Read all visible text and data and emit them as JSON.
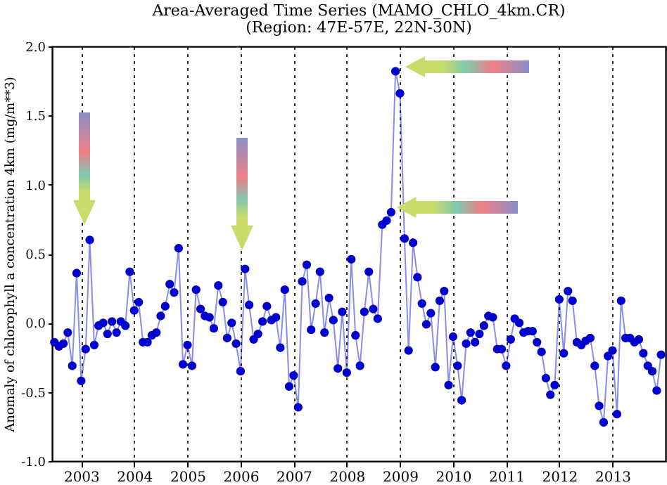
{
  "chart_data": {
    "type": "line",
    "title": "Area-Averaged Time Series (MAMO_CHLO_4km.CR)",
    "subtitle": "(Region: 47E-57E, 22N-30N)",
    "ylabel": "Anomaly of chlorophyll a concentration 4km  (mg/m**3)",
    "x": [
      "2002-07",
      "2002-08",
      "2002-09",
      "2002-10",
      "2002-11",
      "2002-12",
      "2003-01",
      "2003-02",
      "2003-03",
      "2003-04",
      "2003-05",
      "2003-06",
      "2003-07",
      "2003-08",
      "2003-09",
      "2003-10",
      "2003-11",
      "2003-12",
      "2004-01",
      "2004-02",
      "2004-03",
      "2004-04",
      "2004-05",
      "2004-06",
      "2004-07",
      "2004-08",
      "2004-09",
      "2004-10",
      "2004-11",
      "2004-12",
      "2005-01",
      "2005-02",
      "2005-03",
      "2005-04",
      "2005-05",
      "2005-06",
      "2005-07",
      "2005-08",
      "2005-09",
      "2005-10",
      "2005-11",
      "2005-12",
      "2006-01",
      "2006-02",
      "2006-03",
      "2006-04",
      "2006-05",
      "2006-06",
      "2006-07",
      "2006-08",
      "2006-09",
      "2006-10",
      "2006-11",
      "2006-12",
      "2007-01",
      "2007-02",
      "2007-03",
      "2007-04",
      "2007-05",
      "2007-06",
      "2007-07",
      "2007-08",
      "2007-09",
      "2007-10",
      "2007-11",
      "2007-12",
      "2008-01",
      "2008-02",
      "2008-03",
      "2008-04",
      "2008-05",
      "2008-06",
      "2008-07",
      "2008-08",
      "2008-09",
      "2008-10",
      "2008-11",
      "2008-12",
      "2009-01",
      "2009-02",
      "2009-03",
      "2009-04",
      "2009-05",
      "2009-06",
      "2009-07",
      "2009-08",
      "2009-09",
      "2009-10",
      "2009-11",
      "2009-12",
      "2010-01",
      "2010-02",
      "2010-03",
      "2010-04",
      "2010-05",
      "2010-06",
      "2010-07",
      "2010-08",
      "2010-09",
      "2010-10",
      "2010-11",
      "2010-12",
      "2011-01",
      "2011-02",
      "2011-03",
      "2011-04",
      "2011-05",
      "2011-06",
      "2011-07",
      "2011-08",
      "2011-09",
      "2011-10",
      "2011-11",
      "2011-12",
      "2012-01",
      "2012-02",
      "2012-03",
      "2012-04",
      "2012-05",
      "2012-06",
      "2012-07",
      "2012-08",
      "2012-09",
      "2012-10",
      "2012-11",
      "2012-12",
      "2013-01",
      "2013-02",
      "2013-03",
      "2013-04",
      "2013-05",
      "2013-06",
      "2013-07",
      "2013-08",
      "2013-09",
      "2013-10",
      "2013-11",
      "2013-12"
    ],
    "series": [
      {
        "color": "#0000cc",
        "values": [
          -0.14,
          -0.17,
          -0.15,
          -0.07,
          -0.31,
          0.36,
          -0.42,
          -0.19,
          0.6,
          -0.16,
          -0.02,
          0.0,
          -0.08,
          0.01,
          -0.07,
          0.01,
          -0.02,
          0.37,
          0.09,
          0.15,
          -0.14,
          -0.14,
          -0.09,
          -0.07,
          0.05,
          0.12,
          0.28,
          0.22,
          0.54,
          -0.3,
          -0.16,
          -0.31,
          0.24,
          0.1,
          0.05,
          0.04,
          -0.04,
          0.27,
          0.15,
          -0.11,
          0.0,
          -0.15,
          -0.35,
          0.39,
          0.13,
          -0.12,
          -0.08,
          0.01,
          0.12,
          0.02,
          0.04,
          -0.18,
          0.24,
          -0.46,
          -0.38,
          -0.61,
          0.3,
          0.42,
          -0.05,
          0.14,
          0.37,
          -0.07,
          0.18,
          0.02,
          -0.33,
          0.08,
          -0.36,
          0.46,
          -0.09,
          -0.31,
          0.08,
          0.37,
          0.1,
          0.03,
          0.71,
          0.74,
          0.8,
          1.82,
          1.66,
          0.61,
          -0.2,
          0.58,
          0.33,
          0.14,
          -0.01,
          0.07,
          -0.32,
          0.16,
          0.23,
          -0.45,
          -0.1,
          -0.31,
          -0.56,
          -0.15,
          -0.07,
          -0.14,
          -0.08,
          -0.02,
          0.05,
          0.04,
          -0.19,
          -0.19,
          -0.31,
          -0.12,
          0.03,
          0.0,
          -0.07,
          -0.06,
          -0.06,
          -0.14,
          -0.21,
          -0.4,
          -0.52,
          -0.45,
          0.17,
          -0.22,
          0.23,
          0.16,
          -0.14,
          -0.16,
          -0.13,
          -0.11,
          -0.31,
          -0.6,
          -0.72,
          -0.24,
          -0.2,
          -0.66,
          0.16,
          -0.11,
          -0.11,
          -0.14,
          -0.12,
          -0.22,
          -0.31,
          -0.35,
          -0.49,
          -0.23
        ]
      }
    ],
    "xlim": [
      "2002-06-15",
      "2014-01-01"
    ],
    "xticks": [
      "2003",
      "2004",
      "2005",
      "2006",
      "2007",
      "2008",
      "2009",
      "2010",
      "2011",
      "2012",
      "2013"
    ],
    "ylim": [
      -1.0,
      2.0
    ],
    "yticks": [
      {
        "value": -1.0,
        "label": "-1.0"
      },
      {
        "value": -0.5,
        "label": "-0.5"
      },
      {
        "value": 0.0,
        "label": "0.0"
      },
      {
        "value": 0.5,
        "label": "0.5"
      },
      {
        "value": 1.0,
        "label": "1.0"
      },
      {
        "value": 1.5,
        "label": "1.5"
      },
      {
        "value": 2.0,
        "label": "2.0"
      }
    ],
    "grid": "x",
    "marker": "circle",
    "line_style": "solid"
  }
}
